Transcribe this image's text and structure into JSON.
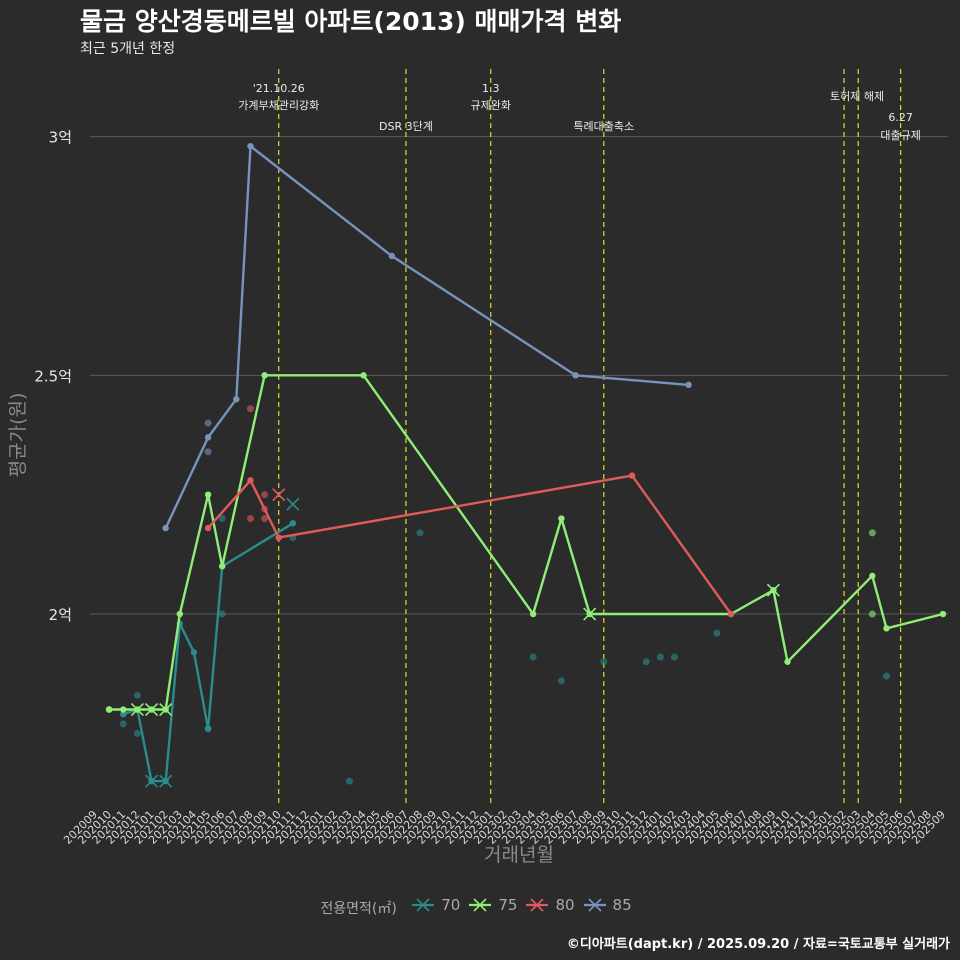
{
  "title": "물금 양산경동메르빌 아파트(2013) 매매가격 변화",
  "subtitle": "최근 5개년 한정",
  "caption": "©디아파트(dapt.kr) / 2025.09.20 / 자료=국토교통부 실거래가",
  "chart_data": {
    "type": "line",
    "xlabel": "거래년월",
    "ylabel": "평균가(원)",
    "ylim": [
      1.6,
      3.15
    ],
    "y_unit": "억",
    "yticks": [
      {
        "value": 2.0,
        "label": "2억"
      },
      {
        "value": 2.5,
        "label": "2.5억"
      },
      {
        "value": 3.0,
        "label": "3억"
      }
    ],
    "x_months": [
      "202009",
      "202010",
      "202011",
      "202012",
      "202101",
      "202102",
      "202103",
      "202104",
      "202105",
      "202106",
      "202107",
      "202108",
      "202109",
      "202110",
      "202111",
      "202112",
      "202201",
      "202202",
      "202203",
      "202204",
      "202205",
      "202206",
      "202207",
      "202208",
      "202209",
      "202210",
      "202211",
      "202212",
      "202301",
      "202302",
      "202303",
      "202304",
      "202305",
      "202306",
      "202307",
      "202308",
      "202309",
      "202310",
      "202311",
      "202312",
      "202401",
      "202402",
      "202403",
      "202404",
      "202405",
      "202406",
      "202407",
      "202408",
      "202409",
      "202410",
      "202411",
      "202412",
      "202501",
      "202502",
      "202503",
      "202504",
      "202505",
      "202506",
      "202507",
      "202508",
      "202509"
    ],
    "events": [
      {
        "month": "202110",
        "offset": 0,
        "label_top": "'21.10.26",
        "label_bottom": "가계부채관리강화",
        "row": 1
      },
      {
        "month": "202207",
        "offset": 0,
        "label_top": "",
        "label_bottom": "DSR 3단계",
        "row": 2
      },
      {
        "month": "202301",
        "offset": 0,
        "label_top": "1.3",
        "label_bottom": "규제완화",
        "row": 1
      },
      {
        "month": "202309",
        "offset": 0,
        "label_top": "",
        "label_bottom": "특례대출축소",
        "row": 2
      },
      {
        "month": "202502",
        "offset": 0,
        "label_top": "",
        "label_bottom": "토허제 해제",
        "row": 0
      },
      {
        "month": "202503",
        "offset": 0,
        "label_top": "",
        "label_bottom": "",
        "row": 0
      },
      {
        "month": "202506",
        "offset": 0,
        "label_top": "6.27",
        "label_bottom": "대출규제",
        "row": 3
      }
    ],
    "legend_title": "전용면적(㎡)",
    "series": [
      {
        "name": "70",
        "color": "#2a8c8c",
        "line": [
          [
            "202011",
            1.79
          ],
          [
            "202012",
            1.8
          ],
          [
            "202101",
            1.65
          ],
          [
            "202102",
            1.65
          ],
          [
            "202103",
            1.98
          ],
          [
            "202104",
            1.92
          ],
          [
            "202105",
            1.76
          ],
          [
            "202106",
            2.1
          ],
          [
            "202111",
            2.19
          ]
        ],
        "points": [
          [
            "202011",
            1.77
          ],
          [
            "202012",
            1.83
          ],
          [
            "202012",
            1.75
          ],
          [
            "202105",
            1.76
          ],
          [
            "202106",
            2.2
          ],
          [
            "202106",
            2.0
          ],
          [
            "202111",
            2.16
          ],
          [
            "202203",
            1.65
          ],
          [
            "202208",
            2.17
          ],
          [
            "202304",
            1.91
          ],
          [
            "202306",
            1.86
          ],
          [
            "202309",
            1.9
          ],
          [
            "202312",
            1.9
          ],
          [
            "202401",
            1.91
          ],
          [
            "202402",
            1.91
          ],
          [
            "202405",
            1.96
          ],
          [
            "202505",
            1.87
          ]
        ],
        "x_marks": [
          [
            "202101",
            1.65
          ],
          [
            "202102",
            1.65
          ],
          [
            "202111",
            2.23
          ]
        ]
      },
      {
        "name": "75",
        "color": "#90ee78",
        "line": [
          [
            "202010",
            1.8
          ],
          [
            "202011",
            1.8
          ],
          [
            "202012",
            1.8
          ],
          [
            "202101",
            1.8
          ],
          [
            "202102",
            1.8
          ],
          [
            "202103",
            2.0
          ],
          [
            "202105",
            2.25
          ],
          [
            "202106",
            2.1
          ],
          [
            "202109",
            2.5
          ],
          [
            "202204",
            2.5
          ],
          [
            "202304",
            2.0
          ],
          [
            "202306",
            2.2
          ],
          [
            "202308",
            2.0
          ],
          [
            "202406",
            2.0
          ],
          [
            "202409",
            2.05
          ],
          [
            "202410",
            1.9
          ],
          [
            "202504",
            2.08
          ],
          [
            "202505",
            1.97
          ],
          [
            "202509",
            2.0
          ]
        ],
        "points": [
          [
            "202010",
            1.8
          ],
          [
            "202504",
            2.17
          ],
          [
            "202504",
            2.0
          ]
        ],
        "x_marks": [
          [
            "202012",
            1.8
          ],
          [
            "202101",
            1.8
          ],
          [
            "202102",
            1.8
          ],
          [
            "202308",
            2.0
          ],
          [
            "202409",
            2.05
          ]
        ]
      },
      {
        "name": "80",
        "color": "#e05a5a",
        "line": [
          [
            "202105",
            2.18
          ],
          [
            "202108",
            2.28
          ],
          [
            "202110",
            2.16
          ],
          [
            "202311",
            2.29
          ],
          [
            "202406",
            2.0
          ]
        ],
        "points": [
          [
            "202108",
            2.43
          ],
          [
            "202108",
            2.2
          ],
          [
            "202109",
            2.2
          ],
          [
            "202109",
            2.22
          ],
          [
            "202109",
            2.25
          ]
        ],
        "x_marks": [
          [
            "202110",
            2.25
          ]
        ]
      },
      {
        "name": "85",
        "color": "#7893bd",
        "line": [
          [
            "202102",
            2.18
          ],
          [
            "202105",
            2.37
          ],
          [
            "202107",
            2.45
          ],
          [
            "202108",
            2.98
          ],
          [
            "202206",
            2.75
          ],
          [
            "202307",
            2.5
          ],
          [
            "202403",
            2.48
          ]
        ],
        "points": [
          [
            "202105",
            2.4
          ],
          [
            "202105",
            2.34
          ]
        ],
        "x_marks": []
      }
    ]
  }
}
